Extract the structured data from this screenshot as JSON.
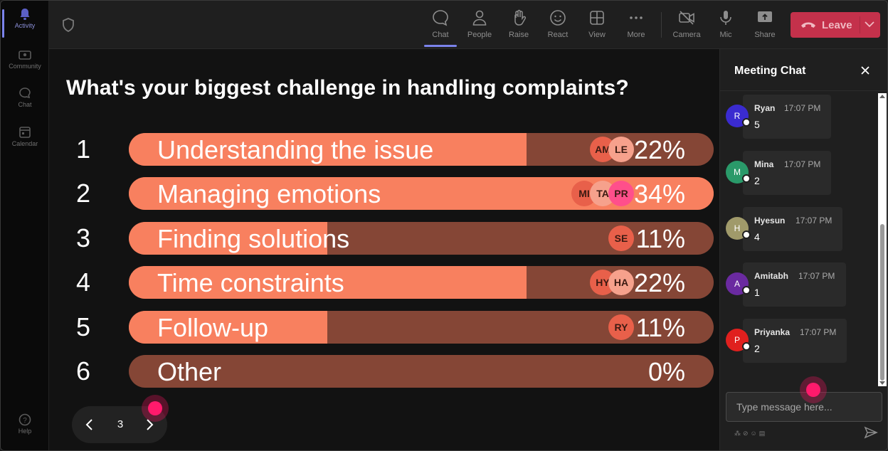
{
  "rail": {
    "items": [
      {
        "label": "Activity",
        "icon": "bell-icon"
      },
      {
        "label": "Community",
        "icon": "community-icon"
      },
      {
        "label": "Chat",
        "icon": "chat-icon"
      },
      {
        "label": "Calendar",
        "icon": "calendar-icon"
      },
      {
        "label": "Help",
        "icon": "help-icon"
      }
    ]
  },
  "toolbar": {
    "chat": "Chat",
    "people": "People",
    "raise": "Raise",
    "react": "React",
    "view": "View",
    "more": "More",
    "camera": "Camera",
    "mic": "Mic",
    "share": "Share",
    "leave": "Leave"
  },
  "poll": {
    "question": "What's your biggest challenge in handling complaints?",
    "options": [
      {
        "num": "1",
        "label": "Understanding the issue",
        "percent": "22%",
        "fill": 0.68,
        "voters": [
          "AM",
          "LE"
        ]
      },
      {
        "num": "2",
        "label": "Managing emotions",
        "percent": "34%",
        "fill": 1.0,
        "voters": [
          "MI",
          "TA",
          "PR"
        ]
      },
      {
        "num": "3",
        "label": "Finding solutions",
        "percent": "11%",
        "fill": 0.34,
        "voters": [
          "SE"
        ]
      },
      {
        "num": "4",
        "label": "Time constraints",
        "percent": "22%",
        "fill": 0.68,
        "voters": [
          "HY",
          "HA"
        ]
      },
      {
        "num": "5",
        "label": "Follow-up",
        "percent": "11%",
        "fill": 0.34,
        "voters": [
          "RY"
        ]
      },
      {
        "num": "6",
        "label": "Other",
        "percent": "0%",
        "fill": 0.0,
        "voters": []
      }
    ],
    "page": "3"
  },
  "colors": {
    "bar_fill": "#f8805f",
    "bar_track": "#854636",
    "leave": "#c4314b",
    "accent": "#7b83eb"
  },
  "chat": {
    "title": "Meeting Chat",
    "messages": [
      {
        "initial": "R",
        "name": "Ryan",
        "time": "17:07 PM",
        "text": "5",
        "color": "#3a2bd0"
      },
      {
        "initial": "M",
        "name": "Mina",
        "time": "17:07 PM",
        "text": "2",
        "color": "#2a9a6a"
      },
      {
        "initial": "H",
        "name": "Hyesun",
        "time": "17:07 PM",
        "text": "4",
        "color": "#a09a6a"
      },
      {
        "initial": "A",
        "name": "Amitabh",
        "time": "17:07 PM",
        "text": "1",
        "color": "#6a2aa0"
      },
      {
        "initial": "P",
        "name": "Priyanka",
        "time": "17:07 PM",
        "text": "2",
        "color": "#e0201e"
      }
    ],
    "placeholder": "Type message here..."
  }
}
